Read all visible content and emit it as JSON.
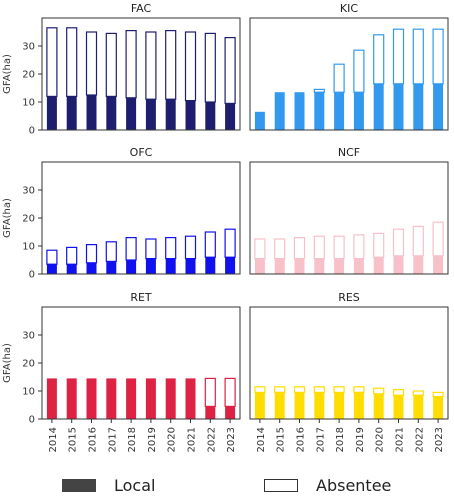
{
  "chart_data": [
    {
      "type": "bar",
      "stacked": true,
      "title": "FAC",
      "ylabel": "GFA(ha)",
      "ylim": [
        0,
        40
      ],
      "yticks": [
        0,
        10,
        20,
        30
      ],
      "categories": [
        "2014",
        "2015",
        "2016",
        "2017",
        "2018",
        "2019",
        "2020",
        "2021",
        "2022",
        "2023"
      ],
      "color": "#1e1e6e",
      "series": [
        {
          "name": "Local",
          "values": [
            12,
            12,
            12.5,
            12,
            11.5,
            11,
            11,
            10.5,
            10,
            9.5
          ]
        },
        {
          "name": "Absentee",
          "values": [
            24.5,
            24.5,
            22.5,
            22.5,
            24,
            24,
            24.5,
            24.5,
            24.5,
            23.5
          ]
        }
      ]
    },
    {
      "type": "bar",
      "stacked": true,
      "title": "KIC",
      "ylabel": "",
      "ylim": [
        0,
        40
      ],
      "yticks": [
        0,
        10,
        20,
        30
      ],
      "categories": [
        "2014",
        "2015",
        "2016",
        "2017",
        "2018",
        "2019",
        "2020",
        "2021",
        "2022",
        "2023"
      ],
      "color": "#3399ee",
      "series": [
        {
          "name": "Local",
          "values": [
            6.5,
            13.5,
            13.5,
            13.5,
            13.5,
            13.5,
            16.5,
            16.5,
            16.5,
            16.5
          ]
        },
        {
          "name": "Absentee",
          "values": [
            0,
            0,
            0,
            1,
            10,
            15,
            17.5,
            19.5,
            19.5,
            19.5
          ]
        }
      ]
    },
    {
      "type": "bar",
      "stacked": true,
      "title": "OFC",
      "ylabel": "GFA(ha)",
      "ylim": [
        0,
        40
      ],
      "yticks": [
        0,
        10,
        20,
        30
      ],
      "categories": [
        "2014",
        "2015",
        "2016",
        "2017",
        "2018",
        "2019",
        "2020",
        "2021",
        "2022",
        "2023"
      ],
      "color": "#1111ee",
      "series": [
        {
          "name": "Local",
          "values": [
            3.5,
            3.5,
            4,
            4.5,
            5,
            5.5,
            5.5,
            5.5,
            6,
            6
          ]
        },
        {
          "name": "Absentee",
          "values": [
            5,
            6,
            6.5,
            7,
            8,
            7,
            7.5,
            8,
            9,
            10
          ]
        }
      ]
    },
    {
      "type": "bar",
      "stacked": true,
      "title": "NCF",
      "ylabel": "",
      "ylim": [
        0,
        40
      ],
      "yticks": [
        0,
        10,
        20,
        30
      ],
      "categories": [
        "2014",
        "2015",
        "2016",
        "2017",
        "2018",
        "2019",
        "2020",
        "2021",
        "2022",
        "2023"
      ],
      "color": "#f8c0c8",
      "series": [
        {
          "name": "Local",
          "values": [
            5.5,
            5.5,
            5.5,
            5.5,
            5.5,
            5.5,
            6,
            6.5,
            6.5,
            6.5
          ]
        },
        {
          "name": "Absentee",
          "values": [
            7,
            7,
            7.5,
            8,
            8,
            8.5,
            8.5,
            9.5,
            10.5,
            12
          ]
        }
      ]
    },
    {
      "type": "bar",
      "stacked": true,
      "title": "RET",
      "ylabel": "GFA(ha)",
      "ylim": [
        0,
        40
      ],
      "yticks": [
        0,
        10,
        20,
        30
      ],
      "categories": [
        "2014",
        "2015",
        "2016",
        "2017",
        "2018",
        "2019",
        "2020",
        "2021",
        "2022",
        "2023"
      ],
      "color": "#dd2244",
      "series": [
        {
          "name": "Local",
          "values": [
            14.5,
            14.5,
            14.5,
            14.5,
            14.5,
            14.5,
            14.5,
            14.5,
            4.5,
            4.5
          ]
        },
        {
          "name": "Absentee",
          "values": [
            0,
            0,
            0,
            0,
            0,
            0,
            0,
            0,
            10,
            10
          ]
        }
      ]
    },
    {
      "type": "bar",
      "stacked": true,
      "title": "RES",
      "ylabel": "",
      "ylim": [
        0,
        40
      ],
      "yticks": [
        0,
        10,
        20,
        30
      ],
      "categories": [
        "2014",
        "2015",
        "2016",
        "2017",
        "2018",
        "2019",
        "2020",
        "2021",
        "2022",
        "2023"
      ],
      "color": "#ffdd00",
      "series": [
        {
          "name": "Local",
          "values": [
            9.5,
            9.5,
            9.5,
            9.5,
            9.5,
            9.5,
            9,
            8.5,
            8.5,
            8
          ]
        },
        {
          "name": "Absentee",
          "values": [
            2,
            2,
            2,
            2,
            2,
            2,
            2,
            2,
            1.5,
            1.5
          ]
        }
      ]
    }
  ],
  "legend": {
    "local_label": "Local",
    "absentee_label": "Absentee",
    "local_color": "#444444",
    "absentee_color": "#ffffff"
  }
}
